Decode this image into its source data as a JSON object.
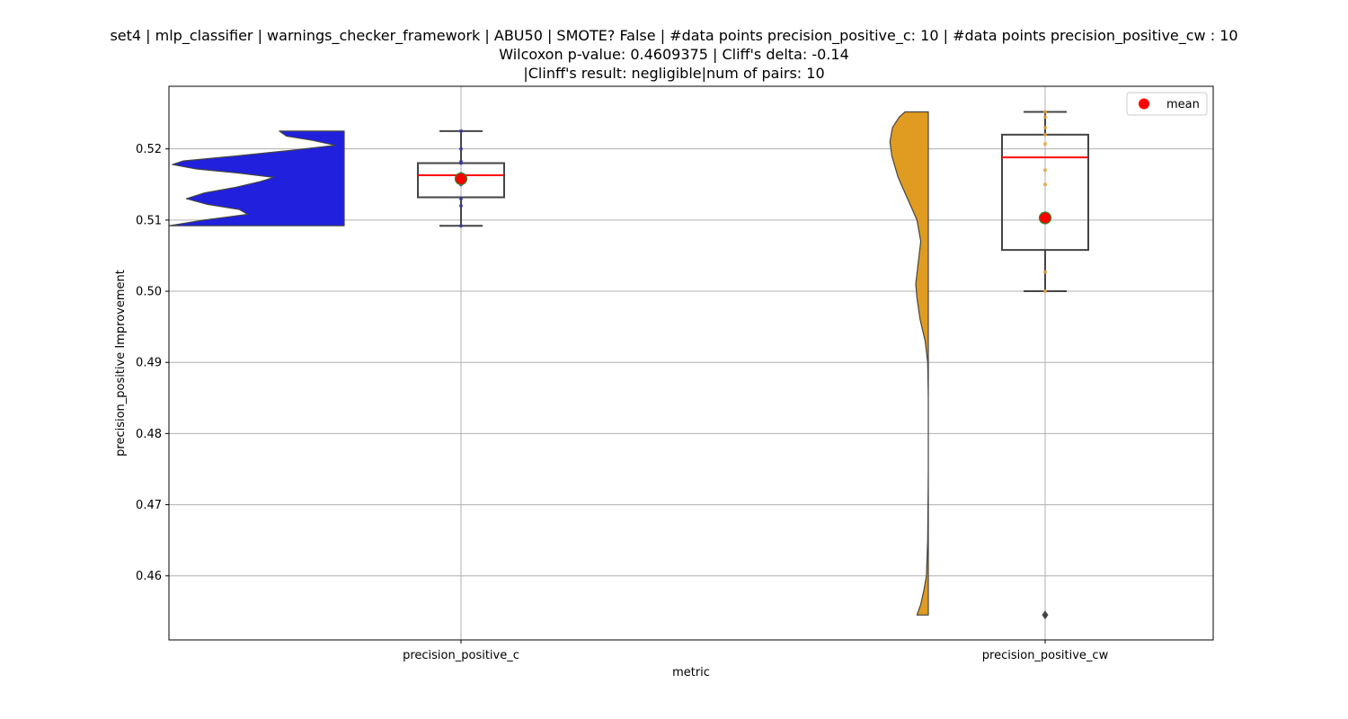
{
  "title_lines": [
    "set4 | mlp_classifier | warnings_checker_framework | ABU50 | SMOTE? False | #data points precision_positive_c: 10 | #data points precision_positive_cw : 10",
    "Wilcoxon p-value: 0.4609375 | Cliff's delta: -0.14",
    "|Clinff's result: negligible|num of pairs: 10"
  ],
  "chart_data": {
    "type": "violin+box",
    "xlabel": "metric",
    "ylabel": "precision_positive Improvement",
    "ylim": [
      0.451,
      0.5288
    ],
    "yticks": [
      0.46,
      0.47,
      0.48,
      0.49,
      0.5,
      0.51,
      0.52
    ],
    "ytick_labels": [
      "0.46",
      "0.47",
      "0.48",
      "0.49",
      "0.50",
      "0.51",
      "0.52"
    ],
    "grid": true,
    "legend": {
      "placement": "top-right",
      "entries": [
        {
          "label": "mean",
          "color": "#ff0000"
        }
      ]
    },
    "categories": [
      "precision_positive_c",
      "precision_positive_cw"
    ],
    "series": [
      {
        "category": "precision_positive_c",
        "violin_color": "#2020dd",
        "points_color": "#3a3aa0",
        "box": {
          "whisker_low": 0.5092,
          "q1": 0.5132,
          "median": 0.5163,
          "q3": 0.518,
          "whisker_high": 0.5225
        },
        "mean": 0.5158,
        "points": [
          0.5092,
          0.512,
          0.513,
          0.515,
          0.516,
          0.5165,
          0.518,
          0.5182,
          0.52,
          0.5225
        ],
        "outliers": [],
        "violin_profile": [
          [
            0.5092,
            1.0
          ],
          [
            0.51,
            0.8
          ],
          [
            0.5108,
            0.55
          ],
          [
            0.5115,
            0.6
          ],
          [
            0.5122,
            0.78
          ],
          [
            0.513,
            0.9
          ],
          [
            0.5138,
            0.8
          ],
          [
            0.5146,
            0.62
          ],
          [
            0.5154,
            0.48
          ],
          [
            0.516,
            0.4
          ],
          [
            0.5166,
            0.6
          ],
          [
            0.5172,
            0.85
          ],
          [
            0.5178,
            0.98
          ],
          [
            0.5183,
            0.92
          ],
          [
            0.519,
            0.62
          ],
          [
            0.5198,
            0.3
          ],
          [
            0.5205,
            0.05
          ],
          [
            0.5212,
            0.18
          ],
          [
            0.5218,
            0.33
          ],
          [
            0.5225,
            0.37
          ]
        ]
      },
      {
        "category": "precision_positive_cw",
        "violin_color": "#e09c20",
        "points_color": "#e8a33a",
        "box": {
          "whisker_low": 0.5,
          "q1": 0.5058,
          "median": 0.5188,
          "q3": 0.522,
          "whisker_high": 0.5252
        },
        "mean": 0.5103,
        "points": [
          0.5,
          0.5027,
          0.515,
          0.517,
          0.5207,
          0.522,
          0.523,
          0.5245,
          0.5252
        ],
        "outliers": [
          0.4545
        ],
        "violin_profile": [
          [
            0.4545,
            0.18
          ],
          [
            0.456,
            0.12
          ],
          [
            0.458,
            0.07
          ],
          [
            0.46,
            0.03
          ],
          [
            0.465,
            0.01
          ],
          [
            0.475,
            0.0
          ],
          [
            0.485,
            0.0
          ],
          [
            0.49,
            0.01
          ],
          [
            0.493,
            0.05
          ],
          [
            0.496,
            0.13
          ],
          [
            0.499,
            0.18
          ],
          [
            0.501,
            0.2
          ],
          [
            0.504,
            0.16
          ],
          [
            0.507,
            0.12
          ],
          [
            0.51,
            0.18
          ],
          [
            0.513,
            0.33
          ],
          [
            0.516,
            0.48
          ],
          [
            0.519,
            0.58
          ],
          [
            0.521,
            0.61
          ],
          [
            0.523,
            0.57
          ],
          [
            0.5245,
            0.46
          ],
          [
            0.5252,
            0.37
          ]
        ]
      }
    ]
  }
}
